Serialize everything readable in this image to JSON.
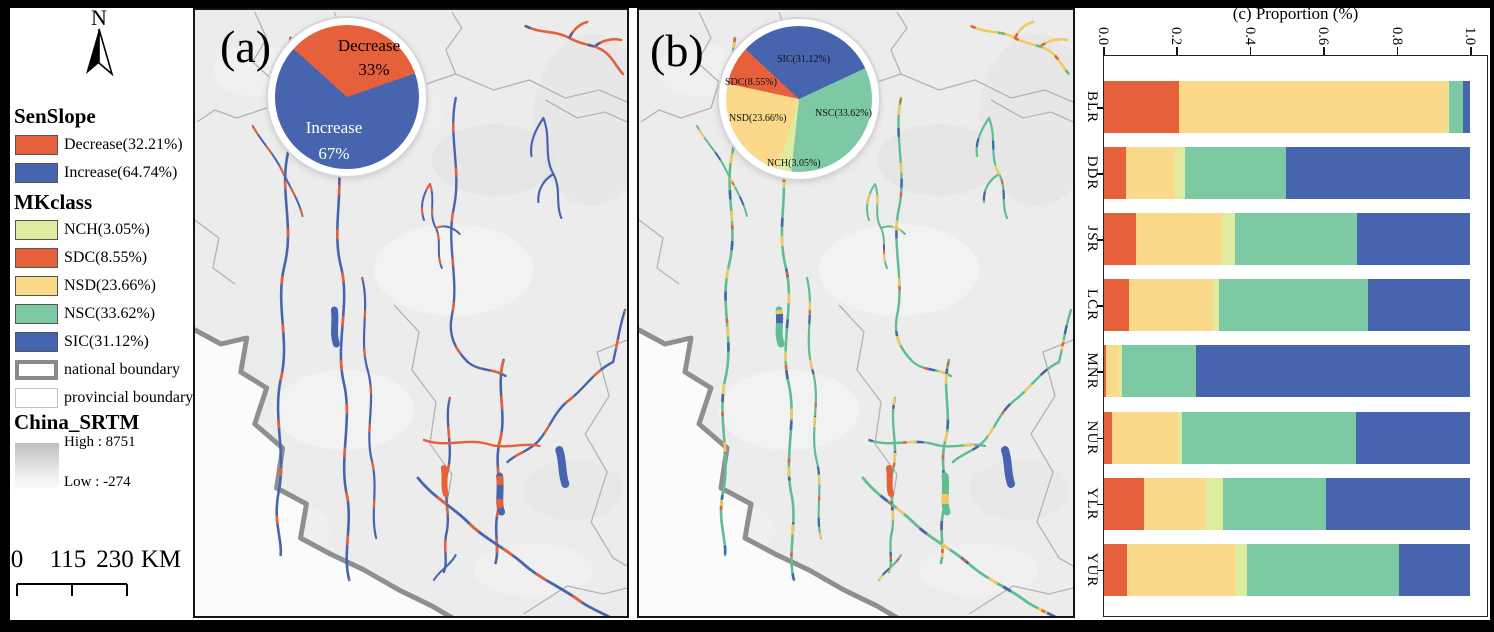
{
  "figure": {
    "panel_a_label": "(a)",
    "panel_b_label": "(b)"
  },
  "legend": {
    "north": "N",
    "senslope_title": "SenSlope",
    "senslope_items": [
      {
        "label": "Decrease(32.21%)",
        "color": "#E5603B"
      },
      {
        "label": "Increase(64.74%)",
        "color": "#4765AE"
      }
    ],
    "mkclass_title": "MKclass",
    "mkclass_items": [
      {
        "label": "NCH(3.05%)",
        "color": "#DFEC9F"
      },
      {
        "label": "SDC(8.55%)",
        "color": "#E5603B"
      },
      {
        "label": "NSD(23.66%)",
        "color": "#FAD98B"
      },
      {
        "label": "NSC(33.62%)",
        "color": "#7DC9A4"
      },
      {
        "label": "SIC(31.12%)",
        "color": "#4765AE"
      }
    ],
    "boundary_items": [
      {
        "label": "national boundary",
        "style": "national"
      },
      {
        "label": "provincial boundary",
        "style": "provincial"
      }
    ],
    "srtm_title": "China_SRTM",
    "srtm_high": "High : 8751",
    "srtm_low": "Low : -274",
    "scalebar_labels": [
      "0",
      "115",
      "230",
      "KM"
    ]
  },
  "pie_a": {
    "decrease": "Decrease",
    "decrease_pct": "33%",
    "increase": "Increase",
    "increase_pct": "67%"
  },
  "pie_b": {
    "labels": [
      "SIC(31.12%)",
      "SDC(8.55%)",
      "NSD(23.66%)",
      "NSC(33.62%)",
      "NCH(3.05%)"
    ]
  },
  "map_colors": {
    "background": "#ECECEC",
    "province_line": "#B3B3B3",
    "national_line": "#8F8F8F",
    "outside_fill": "#FBFBFB"
  },
  "chart_data": [
    {
      "type": "pie",
      "panel": "(a)",
      "title": "SenSlope trend share",
      "labels": [
        "Decrease",
        "Increase"
      ],
      "values": [
        33,
        67
      ],
      "colors": [
        "#E5603B",
        "#4765AE"
      ],
      "start_angle_deg": -48
    },
    {
      "type": "pie",
      "panel": "(b)",
      "title": "MKclass share",
      "labels": [
        "SIC",
        "NSC",
        "NCH",
        "NSD",
        "SDC"
      ],
      "values": [
        31.12,
        33.62,
        3.05,
        23.66,
        8.55
      ],
      "colors": [
        "#4765AE",
        "#7DC9A4",
        "#DFEC9F",
        "#FAD98B",
        "#E5603B"
      ],
      "start_angle_deg": -47
    },
    {
      "type": "bar",
      "orientation": "horizontal-stacked",
      "title": "(c) Proportion (%)",
      "categories": [
        "BLR",
        "DDR",
        "JSR",
        "LCR",
        "MNR",
        "NUR",
        "YLR",
        "YUR"
      ],
      "xticks": [
        "0.0",
        "0.2",
        "0.4",
        "0.6",
        "0.8",
        "1.0"
      ],
      "xlim": [
        0,
        1.05
      ],
      "legend_position": "none",
      "grid": false,
      "series": [
        {
          "name": "SDC",
          "color": "#E5603B",
          "values": [
            0.205,
            0.06,
            0.088,
            0.067,
            0.006,
            0.021,
            0.11,
            0.062
          ]
        },
        {
          "name": "NSD",
          "color": "#FAD98B",
          "values": [
            0.735,
            0.135,
            0.235,
            0.23,
            0.035,
            0.18,
            0.167,
            0.297
          ]
        },
        {
          "name": "NCH",
          "color": "#DFEC9F",
          "values": [
            0.003,
            0.025,
            0.036,
            0.016,
            0.009,
            0.012,
            0.049,
            0.032
          ]
        },
        {
          "name": "NSC",
          "color": "#7DC9A4",
          "values": [
            0.037,
            0.278,
            0.331,
            0.408,
            0.202,
            0.476,
            0.281,
            0.415
          ]
        },
        {
          "name": "SIC",
          "color": "#4765AE",
          "values": [
            0.02,
            0.502,
            0.31,
            0.279,
            0.748,
            0.311,
            0.393,
            0.194
          ]
        }
      ]
    }
  ]
}
